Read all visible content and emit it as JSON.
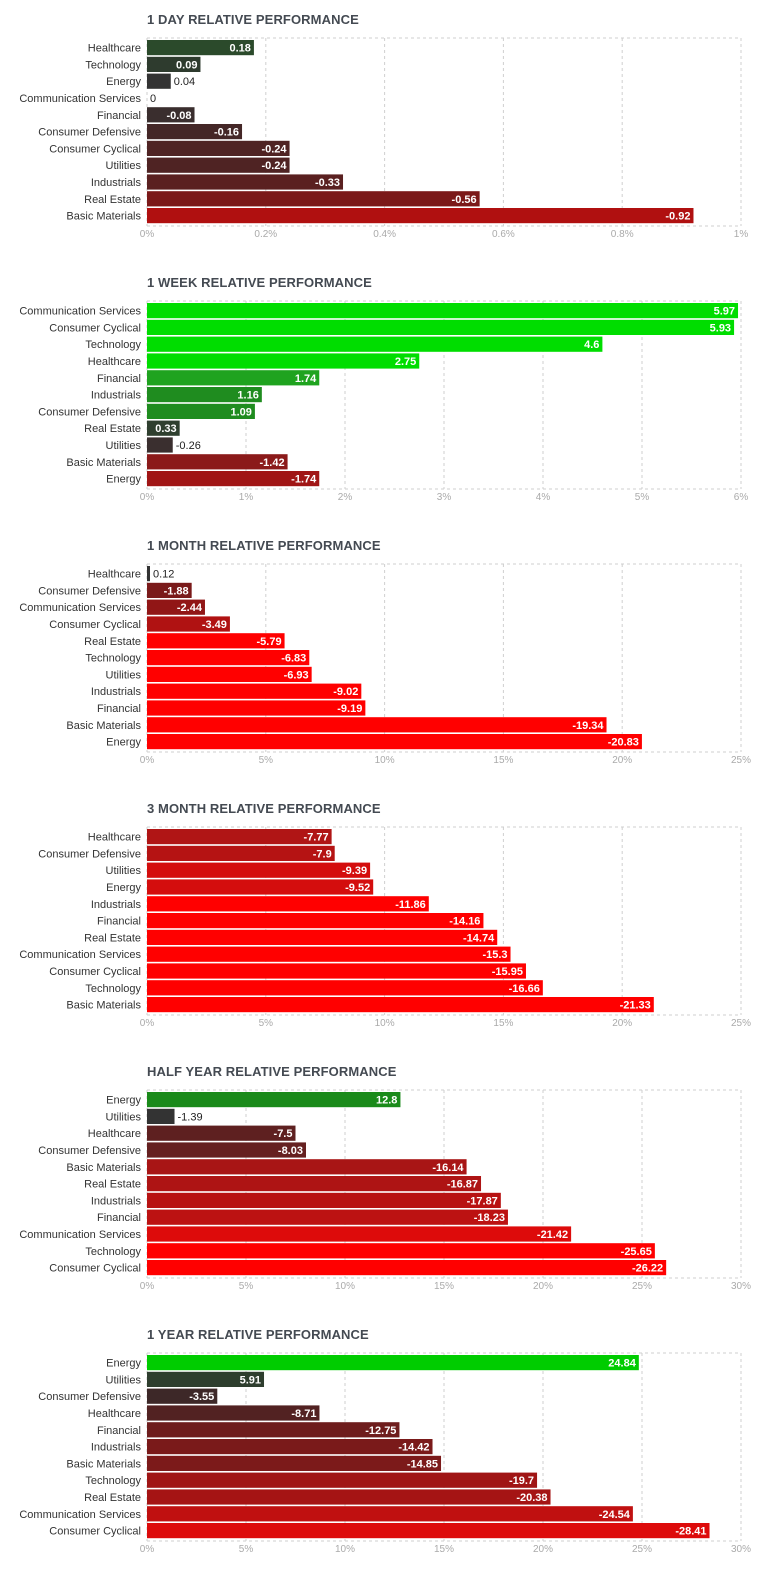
{
  "chart_data": [
    {
      "type": "bar",
      "orientation": "horizontal",
      "title": "1 DAY RELATIVE PERFORMANCE",
      "categories": [
        "Healthcare",
        "Technology",
        "Energy",
        "Communication Services",
        "Financial",
        "Consumer Defensive",
        "Consumer Cyclical",
        "Utilities",
        "Industrials",
        "Real Estate",
        "Basic Materials"
      ],
      "values": [
        0.18,
        0.09,
        0.04,
        0,
        -0.08,
        -0.16,
        -0.24,
        -0.24,
        -0.33,
        -0.56,
        -0.92
      ],
      "value_labels": [
        "0.18",
        "0.09",
        "0.04",
        "0",
        "-0.08",
        "-0.16",
        "-0.24",
        "-0.24",
        "-0.33",
        "-0.56",
        "-0.92"
      ],
      "bar_colors": [
        "#2b4a2b",
        "#2e3b2e",
        "#333333",
        "#333333",
        "#3a2e2e",
        "#442727",
        "#4f2323",
        "#4f2323",
        "#5a2020",
        "#7b1919",
        "#b01010"
      ],
      "ticks": [
        "0%",
        "0.2%",
        "0.4%",
        "0.6%",
        "0.8%",
        "1%"
      ],
      "xlim": [
        0,
        1
      ],
      "grid": true
    },
    {
      "type": "bar",
      "orientation": "horizontal",
      "title": "1 WEEK RELATIVE PERFORMANCE",
      "categories": [
        "Communication Services",
        "Consumer Cyclical",
        "Technology",
        "Healthcare",
        "Financial",
        "Industrials",
        "Consumer Defensive",
        "Real Estate",
        "Utilities",
        "Basic Materials",
        "Energy"
      ],
      "values": [
        5.97,
        5.93,
        4.6,
        2.75,
        1.74,
        1.16,
        1.09,
        0.33,
        -0.26,
        -1.42,
        -1.74
      ],
      "value_labels": [
        "5.97",
        "5.93",
        "4.6",
        "2.75",
        "1.74",
        "1.16",
        "1.09",
        "0.33",
        "-0.26",
        "-1.42",
        "-1.74"
      ],
      "bar_colors": [
        "#00dd00",
        "#00dd00",
        "#00dd00",
        "#00dd00",
        "#1fa31f",
        "#1f8c1f",
        "#1f8c1f",
        "#2f3f2f",
        "#3a2f2f",
        "#8b1a1a",
        "#a01515"
      ],
      "ticks": [
        "0%",
        "1%",
        "2%",
        "3%",
        "4%",
        "5%",
        "6%"
      ],
      "xlim": [
        0,
        6
      ],
      "grid": true
    },
    {
      "type": "bar",
      "orientation": "horizontal",
      "title": "1 MONTH RELATIVE PERFORMANCE",
      "categories": [
        "Healthcare",
        "Consumer Defensive",
        "Communication Services",
        "Consumer Cyclical",
        "Real Estate",
        "Technology",
        "Utilities",
        "Industrials",
        "Financial",
        "Basic Materials",
        "Energy"
      ],
      "values": [
        0.12,
        -1.88,
        -2.44,
        -3.49,
        -5.79,
        -6.83,
        -6.93,
        -9.02,
        -9.19,
        -19.34,
        -20.83
      ],
      "value_labels": [
        "0.12",
        "-1.88",
        "-2.44",
        "-3.49",
        "-5.79",
        "-6.83",
        "-6.93",
        "-9.02",
        "-9.19",
        "-19.34",
        "-20.83"
      ],
      "bar_colors": [
        "#333333",
        "#7a1a1a",
        "#911616",
        "#b01212",
        "#ff0000",
        "#ff0000",
        "#ff0000",
        "#ff0000",
        "#ff0000",
        "#ff0000",
        "#ff0000"
      ],
      "ticks": [
        "0%",
        "5%",
        "10%",
        "15%",
        "20%",
        "25%"
      ],
      "xlim": [
        0,
        25
      ],
      "grid": true
    },
    {
      "type": "bar",
      "orientation": "horizontal",
      "title": "3 MONTH RELATIVE PERFORMANCE",
      "categories": [
        "Healthcare",
        "Consumer Defensive",
        "Utilities",
        "Energy",
        "Industrials",
        "Financial",
        "Real Estate",
        "Communication Services",
        "Consumer Cyclical",
        "Technology",
        "Basic Materials"
      ],
      "values": [
        -7.77,
        -7.9,
        -9.39,
        -9.52,
        -11.86,
        -14.16,
        -14.74,
        -15.3,
        -15.95,
        -16.66,
        -21.33
      ],
      "value_labels": [
        "-7.77",
        "-7.9",
        "-9.39",
        "-9.52",
        "-11.86",
        "-14.16",
        "-14.74",
        "-15.3",
        "-15.95",
        "-16.66",
        "-21.33"
      ],
      "bar_colors": [
        "#b01515",
        "#b51313",
        "#d40d0d",
        "#d40d0d",
        "#ff0000",
        "#ff0000",
        "#ff0000",
        "#ff0000",
        "#ff0000",
        "#ff0000",
        "#ff0000"
      ],
      "ticks": [
        "0%",
        "5%",
        "10%",
        "15%",
        "20%",
        "25%"
      ],
      "xlim": [
        0,
        25
      ],
      "grid": true
    },
    {
      "type": "bar",
      "orientation": "horizontal",
      "title": "HALF YEAR RELATIVE PERFORMANCE",
      "categories": [
        "Energy",
        "Utilities",
        "Healthcare",
        "Consumer Defensive",
        "Basic Materials",
        "Real Estate",
        "Industrials",
        "Financial",
        "Communication Services",
        "Technology",
        "Consumer Cyclical"
      ],
      "values": [
        12.8,
        -1.39,
        -7.5,
        -8.03,
        -16.14,
        -16.87,
        -17.87,
        -18.23,
        -21.42,
        -25.65,
        -26.22
      ],
      "value_labels": [
        "12.8",
        "-1.39",
        "-7.5",
        "-8.03",
        "-16.14",
        "-16.87",
        "-17.87",
        "-18.23",
        "-21.42",
        "-25.65",
        "-26.22"
      ],
      "bar_colors": [
        "#1a8a1a",
        "#333333",
        "#5e2020",
        "#652020",
        "#a81515",
        "#ae1414",
        "#b81212",
        "#bc1212",
        "#dd0b0b",
        "#ff0000",
        "#ff0000"
      ],
      "ticks": [
        "0%",
        "5%",
        "10%",
        "15%",
        "20%",
        "25%",
        "30%"
      ],
      "xlim": [
        0,
        30
      ],
      "grid": true
    },
    {
      "type": "bar",
      "orientation": "horizontal",
      "title": "1 YEAR RELATIVE PERFORMANCE",
      "categories": [
        "Energy",
        "Utilities",
        "Consumer Defensive",
        "Healthcare",
        "Financial",
        "Industrials",
        "Basic Materials",
        "Technology",
        "Real Estate",
        "Communication Services",
        "Consumer Cyclical"
      ],
      "values": [
        24.84,
        5.91,
        -3.55,
        -8.71,
        -12.75,
        -14.42,
        -14.85,
        -19.7,
        -20.38,
        -24.54,
        -28.41
      ],
      "value_labels": [
        "24.84",
        "5.91",
        "-3.55",
        "-8.71",
        "-12.75",
        "-14.42",
        "-14.85",
        "-19.7",
        "-20.38",
        "-24.54",
        "-28.41"
      ],
      "bar_colors": [
        "#00cc00",
        "#2e3e2e",
        "#3d2828",
        "#522222",
        "#6e1d1d",
        "#7a1a1a",
        "#7c1a1a",
        "#a01515",
        "#a51414",
        "#c01010",
        "#dd0b0b"
      ],
      "ticks": [
        "0%",
        "5%",
        "10%",
        "15%",
        "20%",
        "25%",
        "30%"
      ],
      "xlim": [
        0,
        30
      ],
      "grid": true
    }
  ]
}
